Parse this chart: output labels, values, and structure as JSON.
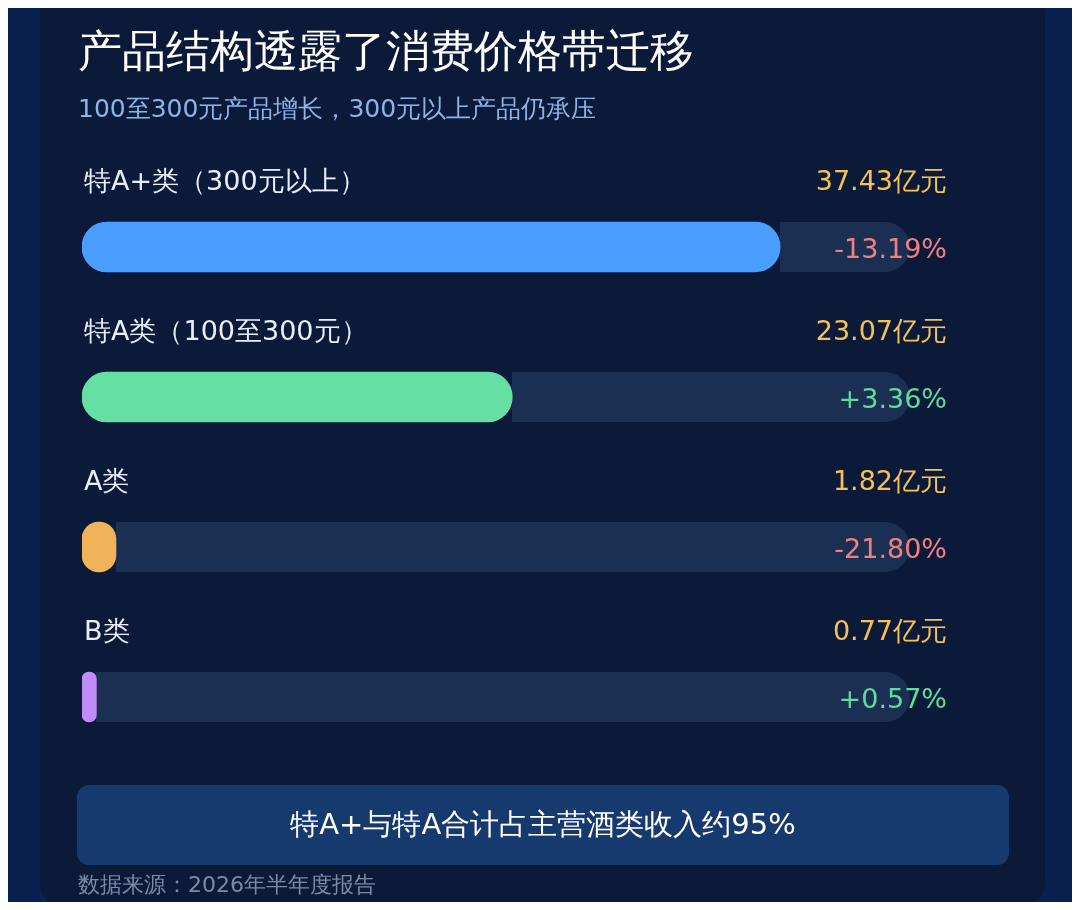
{
  "chart_data": {
    "type": "bar",
    "orientation": "horizontal",
    "title": "产品结构透露了消费价格带迁移",
    "subtitle": "100至300元产品增长，300元以上产品仍承压",
    "categories": [
      "特A+类（300元以上）",
      "特A类（100至300元）",
      "A类",
      "B类"
    ],
    "values": [
      37.43,
      23.07,
      1.82,
      0.77
    ],
    "colors": [
      "#4a9eff",
      "#66dfa3",
      "#f0b35a",
      "#c08cf7"
    ],
    "value_labels": [
      "37.43亿元",
      "23.07亿元",
      "1.82亿元",
      "0.77亿元"
    ],
    "annotations": [
      "-13.19%",
      "+3.36%",
      "-21.80%",
      "+0.57%",
      "特A+与特A合计占主营酒类收入约95%",
      "数据来源：2026年半年度报告"
    ],
    "legend": false
  }
}
